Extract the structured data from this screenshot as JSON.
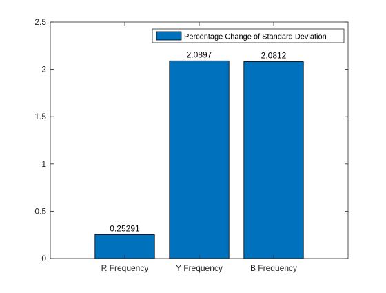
{
  "chart_data": {
    "type": "bar",
    "categories": [
      "R Frequency",
      "Y Frequency",
      "B Frequency"
    ],
    "series": [
      {
        "name": "Percentage Change of Standard Deviation",
        "values": [
          0.25291,
          2.0897,
          2.0812
        ],
        "data_labels": [
          "0.25291",
          "2.0897",
          "2.0812"
        ],
        "color": "#0072BD"
      }
    ],
    "title": "",
    "xlabel": "",
    "ylabel": "",
    "ylim": [
      0,
      2.5
    ],
    "yticks": [
      0,
      0.5,
      1,
      1.5,
      2,
      2.5
    ],
    "ytick_labels": [
      "0",
      "0.5",
      "1",
      "1.5",
      "2",
      "2.5"
    ],
    "grid": false,
    "legend": {
      "placement": "top-right",
      "entries": [
        "Percentage Change of Standard Deviation"
      ]
    },
    "colors": {
      "bar_fill": "#0072BD",
      "bar_edge": "#000000",
      "axis": "#262626",
      "text": "#000000"
    }
  }
}
